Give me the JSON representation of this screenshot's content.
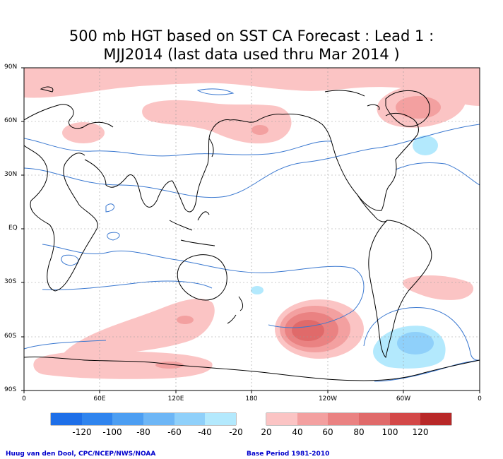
{
  "title": {
    "line1": "500 mb HGT based on SST CA Forecast : Lead 1 :",
    "line2": "MJJ2014 (last data used thru Mar 2014 )"
  },
  "lat_labels": [
    "90N",
    "60N",
    "30N",
    "EQ",
    "30S",
    "60S",
    "90S"
  ],
  "lon_labels": [
    "0",
    "60E",
    "120E",
    "180",
    "120W",
    "60W",
    "0"
  ],
  "colorbar": {
    "negative_labels": [
      "-120",
      "-100",
      "-80",
      "-60",
      "-40",
      "-20"
    ],
    "positive_labels": [
      "20",
      "40",
      "60",
      "80",
      "100",
      "120"
    ],
    "negative_colors": [
      "#1e6fe8",
      "#2f84ee",
      "#4c9ef2",
      "#6db6f6",
      "#8fd0fa",
      "#b3e9fd"
    ],
    "positive_colors": [
      "#fbc4c4",
      "#f3a0a0",
      "#ea8282",
      "#e06a6a",
      "#d34848",
      "#b82828"
    ]
  },
  "credits": {
    "left": "Huug van den Dool, CPC/NCEP/NWS/NOAA",
    "right": "Base Period 1981-2010"
  }
}
